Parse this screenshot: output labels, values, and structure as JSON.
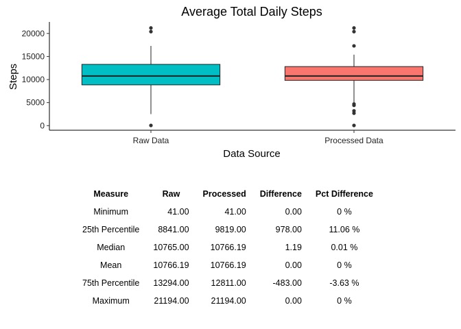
{
  "chart_data": {
    "type": "box",
    "title": "Average Total Daily Steps",
    "xlabel": "Data Source",
    "ylabel": "Steps",
    "ylim": [
      -1000,
      22500
    ],
    "yticks": [
      0,
      5000,
      10000,
      15000,
      20000
    ],
    "yticklabels": [
      "0",
      "5000",
      "10000",
      "15000",
      "20000"
    ],
    "grid": false,
    "series": [
      {
        "name": "Raw Data",
        "color": "#00BFC4",
        "whisker_low": 2500,
        "q1": 8841,
        "median": 10765,
        "q3": 13294,
        "whisker_high": 17300,
        "outliers": [
          41,
          20400,
          21194
        ]
      },
      {
        "name": "Processed Data",
        "color": "#F8766D",
        "whisker_low": 5000,
        "q1": 9819,
        "median": 10766.19,
        "q3": 12811,
        "whisker_high": 15400,
        "outliers": [
          41,
          2700,
          3200,
          4400,
          4700,
          17300,
          20400,
          21194
        ]
      }
    ]
  },
  "table": {
    "headers": [
      "Measure",
      "Raw",
      "Processed",
      "Difference",
      "Pct Difference"
    ],
    "rows": [
      [
        "Minimum",
        "41.00",
        "41.00",
        "0.00",
        "0 %"
      ],
      [
        "25th Percentile",
        "8841.00",
        "9819.00",
        "978.00",
        "11.06 %"
      ],
      [
        "Median",
        "10765.00",
        "10766.19",
        "1.19",
        "0.01 %"
      ],
      [
        "Mean",
        "10766.19",
        "10766.19",
        "0.00",
        "0 %"
      ],
      [
        "75th Percentile",
        "13294.00",
        "12811.00",
        "-483.00",
        "-3.63 %"
      ],
      [
        "Maximum",
        "21194.00",
        "21194.00",
        "0.00",
        "0 %"
      ]
    ]
  }
}
